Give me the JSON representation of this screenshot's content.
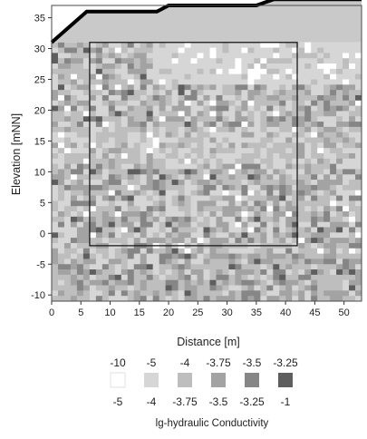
{
  "chart_data": {
    "type": "heatmap",
    "title": "",
    "xlabel": "Distance [m]",
    "ylabel": "Elevation [mNN]",
    "xlim": [
      0,
      53
    ],
    "ylim": [
      -11,
      37
    ],
    "x_ticks": [
      "0",
      "5",
      "10",
      "15",
      "20",
      "25",
      "30",
      "35",
      "40",
      "45",
      "50"
    ],
    "y_ticks": [
      "-10",
      "-5",
      "0",
      "5",
      "10",
      "15",
      "20",
      "25",
      "30",
      "35"
    ],
    "field_top_elevation": 31,
    "surface_profile": [
      [
        0,
        31
      ],
      [
        6,
        36
      ],
      [
        18,
        36
      ],
      [
        20,
        37
      ],
      [
        35,
        37
      ],
      [
        38,
        38
      ],
      [
        53,
        38
      ]
    ],
    "model_box": {
      "x": [
        6.5,
        42
      ],
      "y": [
        -2,
        31
      ]
    },
    "colorbar": {
      "title": "lg-hydraulic Conductivity",
      "classes": [
        {
          "from": "-10",
          "to": "-5",
          "color": "#ffffff"
        },
        {
          "from": "-5",
          "to": "-4",
          "color": "#d6d6d6"
        },
        {
          "from": "-4",
          "to": "-3.75",
          "color": "#bebebe"
        },
        {
          "from": "-3.75",
          "to": "-3.5",
          "color": "#a3a3a3"
        },
        {
          "from": "-3.5",
          "to": "-3.25",
          "color": "#868686"
        },
        {
          "from": "-3.25",
          "to": "-1",
          "color": "#5e5e5e"
        }
      ]
    }
  }
}
